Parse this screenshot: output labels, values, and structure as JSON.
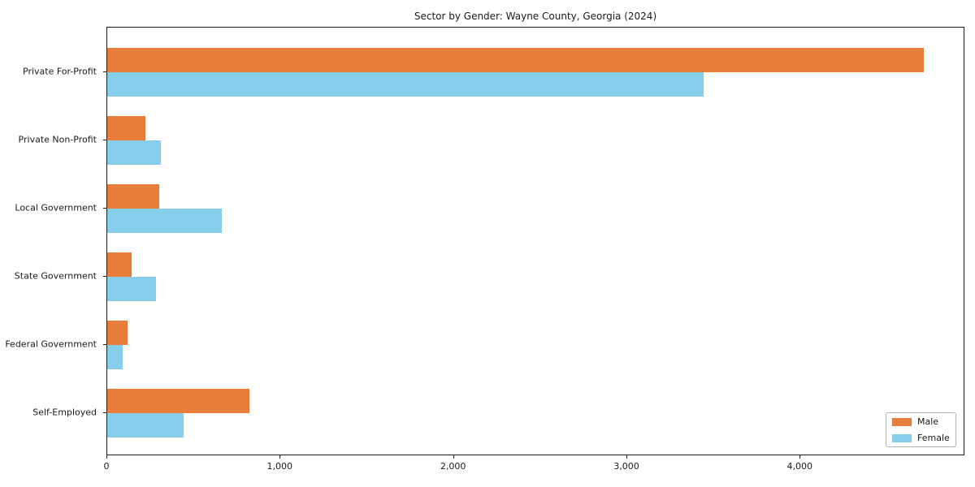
{
  "chart": {
    "title": "Sector by Gender: Wayne County, Georgia (2024)"
  },
  "chart_data": {
    "type": "bar",
    "orientation": "horizontal",
    "title": "Sector by Gender: Wayne County, Georgia (2024)",
    "xlabel": "",
    "ylabel": "",
    "categories": [
      "Private For-Profit",
      "Private Non-Profit",
      "Local Government",
      "State Government",
      "Federal Government",
      "Self-Employed"
    ],
    "series": [
      {
        "name": "Male",
        "color": "#e87d3b",
        "values": [
          4710,
          220,
          300,
          140,
          115,
          820
        ]
      },
      {
        "name": "Female",
        "color": "#87ceeb",
        "values": [
          3440,
          310,
          660,
          280,
          90,
          440
        ]
      }
    ],
    "xlim": [
      0,
      4950
    ],
    "x_ticks": [
      0,
      1000,
      2000,
      3000,
      4000
    ],
    "x_tick_labels": [
      "0",
      "1,000",
      "2,000",
      "3,000",
      "4,000"
    ],
    "grid": false,
    "legend_position": "lower right"
  },
  "legend": {
    "items": [
      {
        "label": "Male",
        "color": "#e87d3b"
      },
      {
        "label": "Female",
        "color": "#87ceeb"
      }
    ]
  }
}
